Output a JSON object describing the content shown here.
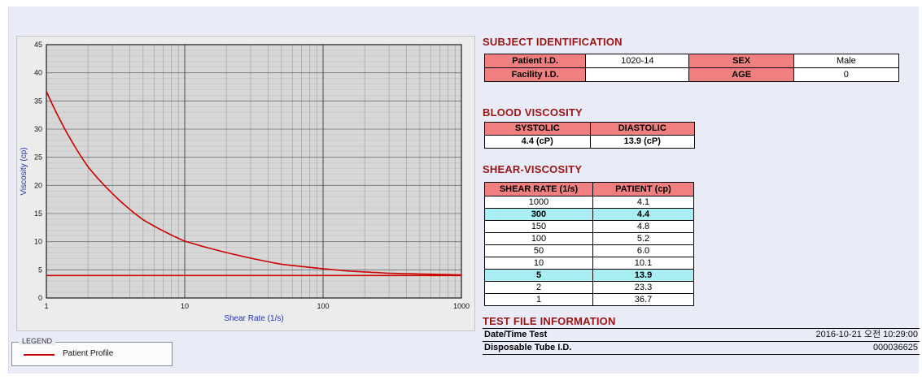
{
  "colors": {
    "page_background": "#e9ebf7",
    "heading_red": "#9b1414",
    "header_pink": "#f08080",
    "highlight_cyan": "#a8eef2",
    "curve_red": "#cc0000",
    "axis_label_blue": "#2233bb"
  },
  "legend": {
    "title": "LEGEND",
    "series_label": "Patient Profile"
  },
  "subject": {
    "heading": "SUBJECT IDENTIFICATION",
    "rows": [
      {
        "label1": "Patient I.D.",
        "value1": "1020-14",
        "label2": "SEX",
        "value2": "Male"
      },
      {
        "label1": "Facility I.D.",
        "value1": "",
        "label2": "AGE",
        "value2": "0"
      }
    ]
  },
  "blood_viscosity": {
    "heading": "BLOOD VISCOSITY",
    "headers": [
      "SYSTOLIC",
      "DIASTOLIC"
    ],
    "values": [
      "4.4 (cP)",
      "13.9 (cP)"
    ]
  },
  "shear_viscosity": {
    "heading": "SHEAR-VISCOSITY",
    "headers": [
      "SHEAR RATE (1/s)",
      "PATIENT (cp)"
    ],
    "rows": [
      {
        "rate": "1000",
        "value": "4.1",
        "highlight": false
      },
      {
        "rate": "300",
        "value": "4.4",
        "highlight": true
      },
      {
        "rate": "150",
        "value": "4.8",
        "highlight": false
      },
      {
        "rate": "100",
        "value": "5.2",
        "highlight": false
      },
      {
        "rate": "50",
        "value": "6.0",
        "highlight": false
      },
      {
        "rate": "10",
        "value": "10.1",
        "highlight": false
      },
      {
        "rate": "5",
        "value": "13.9",
        "highlight": true
      },
      {
        "rate": "2",
        "value": "23.3",
        "highlight": false
      },
      {
        "rate": "1",
        "value": "36.7",
        "highlight": false
      }
    ]
  },
  "test_file": {
    "heading": "TEST FILE INFORMATION",
    "rows": [
      {
        "label": "Date/Time Test",
        "value": "2016-10-21 오전 10:29:00"
      },
      {
        "label": "Disposable Tube I.D.",
        "value": "000036625"
      }
    ]
  },
  "chart_data": {
    "type": "line",
    "x_scale": "log",
    "xlabel": "Shear Rate (1/s)",
    "ylabel": "Viscosity (cp)",
    "xlim": [
      1,
      1000
    ],
    "ylim": [
      0,
      45
    ],
    "x_ticks": [
      1,
      10,
      100,
      1000
    ],
    "y_ticks": [
      0,
      5,
      10,
      15,
      20,
      25,
      30,
      35,
      40,
      45
    ],
    "grid": true,
    "legend_position": "bottom-left",
    "series": [
      {
        "name": "Patient Profile",
        "color": "#cc0000",
        "smooth": true,
        "x": [
          1,
          2,
          5,
          10,
          50,
          100,
          150,
          300,
          1000
        ],
        "y": [
          36.7,
          23.3,
          13.9,
          10.1,
          6.0,
          5.2,
          4.8,
          4.4,
          4.1
        ]
      },
      {
        "name": "reference-line",
        "color": "#cc0000",
        "smooth": false,
        "x": [
          1,
          1000
        ],
        "y": [
          4.0,
          4.0
        ]
      }
    ]
  }
}
